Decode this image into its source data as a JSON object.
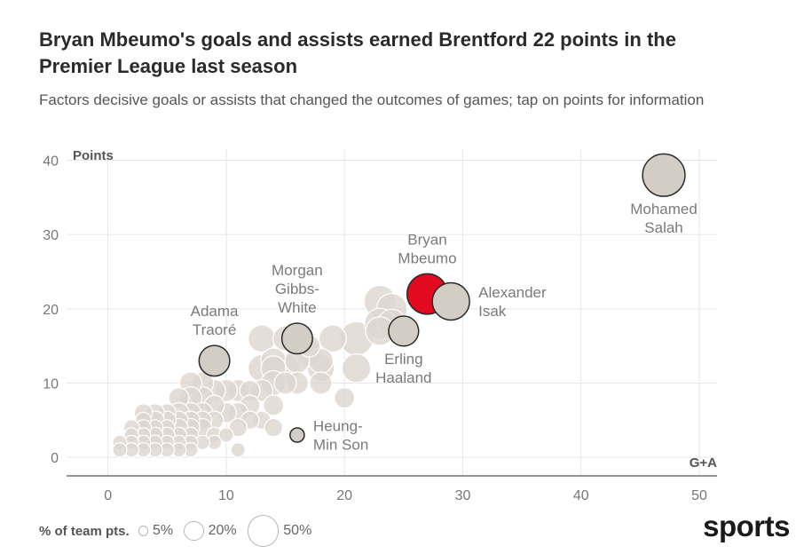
{
  "title": "Bryan Mbeumo's goals and assists earned Brentford 22 points in the Premier League last season",
  "subtitle": "Factors decisive goals or assists that changed the outcomes of games; tap on points for information",
  "legend": {
    "label": "% of team pts.",
    "items": [
      {
        "label": "5%",
        "share": 5
      },
      {
        "label": "20%",
        "share": 20
      },
      {
        "label": "50%",
        "share": 50
      }
    ]
  },
  "brand": "sports",
  "colors": {
    "highlight": "#e10a1e",
    "named": "#d4cdc6",
    "background_points": "#ddd6cf",
    "grid": "#e6e6e6",
    "axis": "#555555"
  },
  "chart_data": {
    "type": "scatter",
    "xlabel": "G+A",
    "ylabel": "Points",
    "xlim": [
      -3.5,
      51.5
    ],
    "ylim": [
      -2.5,
      41.5
    ],
    "xticks": [
      0,
      10,
      20,
      30,
      40,
      50
    ],
    "yticks": [
      0,
      10,
      20,
      30,
      40
    ],
    "grid": true,
    "size_encoding": "% of team pts.",
    "named_points": [
      {
        "name": "Mohamed Salah",
        "label_lines": [
          "Mohamed",
          "Salah"
        ],
        "x": 47,
        "y": 38,
        "share": 44,
        "highlight": false,
        "label_pos": "below"
      },
      {
        "name": "Bryan Mbeumo",
        "label_lines": [
          "Bryan",
          "Mbeumo"
        ],
        "x": 27,
        "y": 22,
        "share": 40,
        "highlight": true,
        "label_pos": "above"
      },
      {
        "name": "Alexander Isak",
        "label_lines": [
          "Alexander",
          "Isak"
        ],
        "x": 29,
        "y": 21,
        "share": 34,
        "highlight": false,
        "label_pos": "right"
      },
      {
        "name": "Erling Haaland",
        "label_lines": [
          "Erling",
          "Haaland"
        ],
        "x": 25,
        "y": 17,
        "share": 22,
        "highlight": false,
        "label_pos": "below"
      },
      {
        "name": "Morgan Gibbs-White",
        "label_lines": [
          "Morgan",
          "Gibbs-",
          "White"
        ],
        "x": 16,
        "y": 16,
        "share": 23,
        "highlight": false,
        "label_pos": "above"
      },
      {
        "name": "Adama Traoré",
        "label_lines": [
          "Adama",
          "Traoré"
        ],
        "x": 9,
        "y": 13,
        "share": 23,
        "highlight": false,
        "label_pos": "above"
      },
      {
        "name": "Heung-Min Son",
        "label_lines": [
          "Heung-",
          "Min Son"
        ],
        "x": 16,
        "y": 3,
        "share": 5,
        "highlight": false,
        "label_pos": "right"
      }
    ],
    "other_points": [
      {
        "x": 23,
        "y": 21,
        "share": 25
      },
      {
        "x": 24,
        "y": 20,
        "share": 23
      },
      {
        "x": 23,
        "y": 18,
        "share": 23
      },
      {
        "x": 24,
        "y": 18,
        "share": 20
      },
      {
        "x": 23,
        "y": 17,
        "share": 20
      },
      {
        "x": 21,
        "y": 16,
        "share": 28
      },
      {
        "x": 21,
        "y": 12,
        "share": 20
      },
      {
        "x": 20,
        "y": 8,
        "share": 10
      },
      {
        "x": 18,
        "y": 13,
        "share": 15
      },
      {
        "x": 18,
        "y": 12,
        "share": 18
      },
      {
        "x": 18,
        "y": 10,
        "share": 12
      },
      {
        "x": 17,
        "y": 15,
        "share": 12
      },
      {
        "x": 19,
        "y": 16,
        "share": 18
      },
      {
        "x": 17,
        "y": 14,
        "share": 18
      },
      {
        "x": 13,
        "y": 16,
        "share": 18
      },
      {
        "x": 15,
        "y": 16,
        "share": 15
      },
      {
        "x": 14,
        "y": 13,
        "share": 16
      },
      {
        "x": 15,
        "y": 12,
        "share": 20
      },
      {
        "x": 13,
        "y": 12,
        "share": 18
      },
      {
        "x": 14,
        "y": 12,
        "share": 15
      },
      {
        "x": 16,
        "y": 13,
        "share": 15
      },
      {
        "x": 16,
        "y": 10,
        "share": 12
      },
      {
        "x": 15,
        "y": 10,
        "share": 12
      },
      {
        "x": 14,
        "y": 10,
        "share": 15
      },
      {
        "x": 13,
        "y": 9,
        "share": 12
      },
      {
        "x": 12,
        "y": 9,
        "share": 10
      },
      {
        "x": 14,
        "y": 7,
        "share": 10
      },
      {
        "x": 13,
        "y": 5,
        "share": 8
      },
      {
        "x": 14,
        "y": 4,
        "share": 8
      },
      {
        "x": 12,
        "y": 7,
        "share": 10
      },
      {
        "x": 11,
        "y": 9,
        "share": 12
      },
      {
        "x": 11,
        "y": 6,
        "share": 10
      },
      {
        "x": 12,
        "y": 5,
        "share": 8
      },
      {
        "x": 11,
        "y": 4,
        "share": 8
      },
      {
        "x": 11,
        "y": 1,
        "share": 5
      },
      {
        "x": 10,
        "y": 9,
        "share": 12
      },
      {
        "x": 10,
        "y": 6,
        "share": 10
      },
      {
        "x": 10,
        "y": 3,
        "share": 5
      },
      {
        "x": 9,
        "y": 9,
        "share": 12
      },
      {
        "x": 9,
        "y": 7,
        "share": 10
      },
      {
        "x": 9,
        "y": 5,
        "share": 8
      },
      {
        "x": 9,
        "y": 3,
        "share": 6
      },
      {
        "x": 9,
        "y": 2,
        "share": 5
      },
      {
        "x": 8,
        "y": 10,
        "share": 12
      },
      {
        "x": 8,
        "y": 8,
        "share": 12
      },
      {
        "x": 8,
        "y": 6,
        "share": 10
      },
      {
        "x": 8,
        "y": 5,
        "share": 8
      },
      {
        "x": 8,
        "y": 4,
        "share": 8
      },
      {
        "x": 8,
        "y": 2,
        "share": 5
      },
      {
        "x": 7,
        "y": 10,
        "share": 12
      },
      {
        "x": 7,
        "y": 8,
        "share": 12
      },
      {
        "x": 7,
        "y": 6,
        "share": 10
      },
      {
        "x": 7,
        "y": 5,
        "share": 8
      },
      {
        "x": 7,
        "y": 4,
        "share": 8
      },
      {
        "x": 7,
        "y": 3,
        "share": 6
      },
      {
        "x": 7,
        "y": 2,
        "share": 5
      },
      {
        "x": 7,
        "y": 1,
        "share": 5
      },
      {
        "x": 6,
        "y": 8,
        "share": 10
      },
      {
        "x": 6,
        "y": 6,
        "share": 10
      },
      {
        "x": 6,
        "y": 5,
        "share": 8
      },
      {
        "x": 6,
        "y": 4,
        "share": 8
      },
      {
        "x": 6,
        "y": 3,
        "share": 6
      },
      {
        "x": 6,
        "y": 2,
        "share": 5
      },
      {
        "x": 6,
        "y": 1,
        "share": 5
      },
      {
        "x": 5,
        "y": 6,
        "share": 8
      },
      {
        "x": 5,
        "y": 5,
        "share": 8
      },
      {
        "x": 5,
        "y": 4,
        "share": 6
      },
      {
        "x": 5,
        "y": 3,
        "share": 6
      },
      {
        "x": 5,
        "y": 2,
        "share": 5
      },
      {
        "x": 5,
        "y": 1,
        "share": 5
      },
      {
        "x": 4,
        "y": 6,
        "share": 8
      },
      {
        "x": 4,
        "y": 5,
        "share": 8
      },
      {
        "x": 4,
        "y": 4,
        "share": 6
      },
      {
        "x": 4,
        "y": 3,
        "share": 6
      },
      {
        "x": 4,
        "y": 2,
        "share": 5
      },
      {
        "x": 4,
        "y": 1,
        "share": 5
      },
      {
        "x": 3,
        "y": 6,
        "share": 8
      },
      {
        "x": 3,
        "y": 5,
        "share": 6
      },
      {
        "x": 3,
        "y": 4,
        "share": 6
      },
      {
        "x": 3,
        "y": 3,
        "share": 5
      },
      {
        "x": 3,
        "y": 2,
        "share": 5
      },
      {
        "x": 3,
        "y": 1,
        "share": 5
      },
      {
        "x": 2,
        "y": 4,
        "share": 6
      },
      {
        "x": 2,
        "y": 3,
        "share": 5
      },
      {
        "x": 2,
        "y": 2,
        "share": 5
      },
      {
        "x": 2,
        "y": 1,
        "share": 5
      },
      {
        "x": 1,
        "y": 2,
        "share": 5
      },
      {
        "x": 1,
        "y": 1,
        "share": 5
      }
    ]
  }
}
